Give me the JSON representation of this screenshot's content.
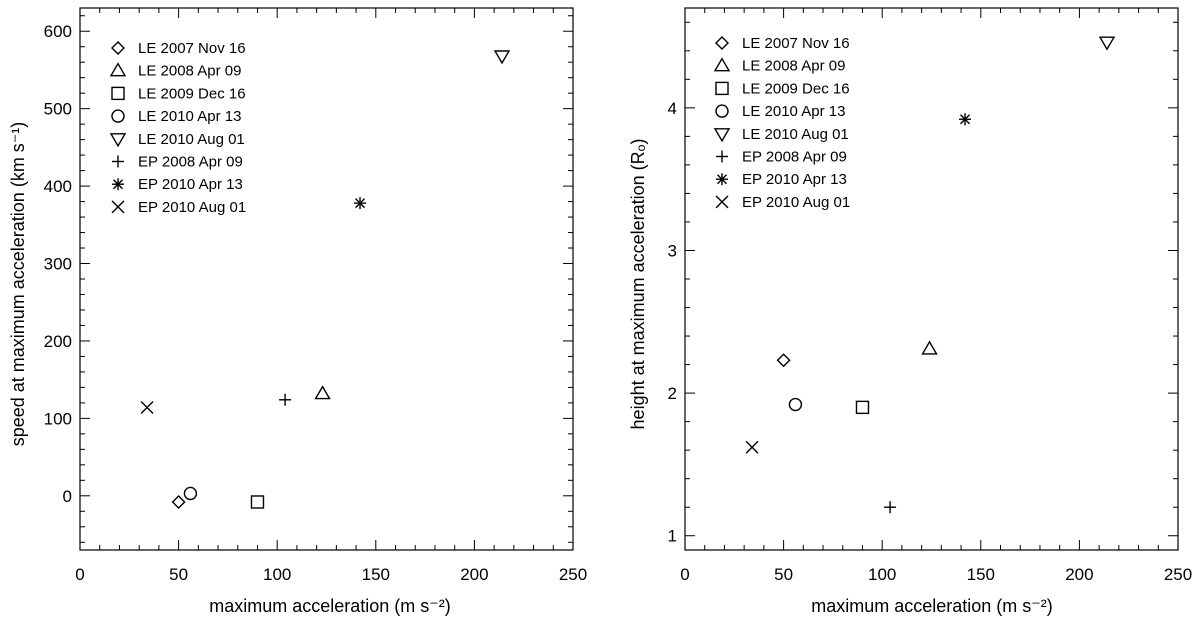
{
  "legend_entries": [
    {
      "label": "LE 2007 Nov 16",
      "marker": "diamond"
    },
    {
      "label": "LE 2008 Apr 09",
      "marker": "triangle-up"
    },
    {
      "label": "LE 2009 Dec 16",
      "marker": "square"
    },
    {
      "label": "LE 2010 Apr 13",
      "marker": "circle"
    },
    {
      "label": "LE 2010 Aug 01",
      "marker": "triangle-down"
    },
    {
      "label": "EP 2008 Apr 09",
      "marker": "plus"
    },
    {
      "label": "EP 2010 Apr 13",
      "marker": "asterisk"
    },
    {
      "label": "EP 2010 Aug 01",
      "marker": "cross"
    }
  ],
  "chart_data": [
    {
      "type": "scatter",
      "xlabel": "maximum acceleration (m s⁻²)",
      "ylabel": "speed at maximum acceleration (km s⁻¹)",
      "xlim": [
        0,
        250
      ],
      "ylim": [
        -70,
        630
      ],
      "xticks": [
        0,
        50,
        100,
        150,
        200,
        250
      ],
      "yticks": [
        0,
        100,
        200,
        300,
        400,
        500,
        600
      ],
      "xtick_labels": [
        "0",
        "50",
        "100",
        "150",
        "200",
        "250"
      ],
      "ytick_labels": [
        "0",
        "100",
        "200",
        "300",
        "400",
        "500",
        "600"
      ],
      "grid": false,
      "legend_position": "top-left",
      "points": [
        {
          "series": "LE 2007 Nov 16",
          "x": 50,
          "y": -8
        },
        {
          "series": "LE 2008 Apr 09",
          "x": 123,
          "y": 132
        },
        {
          "series": "LE 2009 Dec 16",
          "x": 90,
          "y": -8
        },
        {
          "series": "LE 2010 Apr 13",
          "x": 56,
          "y": 3
        },
        {
          "series": "LE 2010 Aug 01",
          "x": 214,
          "y": 568
        },
        {
          "series": "EP 2008 Apr 09",
          "x": 104,
          "y": 124
        },
        {
          "series": "EP 2010 Apr 13",
          "x": 142,
          "y": 378
        },
        {
          "series": "EP 2010 Aug 01",
          "x": 34,
          "y": 114
        }
      ]
    },
    {
      "type": "scatter",
      "xlabel": "maximum acceleration (m s⁻²)",
      "ylabel": "height at maximum acceleration (Rₒ)",
      "xlim": [
        0,
        250
      ],
      "ylim": [
        0.9,
        4.7
      ],
      "xticks": [
        0,
        50,
        100,
        150,
        200,
        250
      ],
      "yticks": [
        1,
        2,
        3,
        4
      ],
      "xtick_labels": [
        "0",
        "50",
        "100",
        "150",
        "200",
        "250"
      ],
      "ytick_labels": [
        "1",
        "2",
        "3",
        "4"
      ],
      "grid": false,
      "legend_position": "top-left",
      "points": [
        {
          "series": "LE 2007 Nov 16",
          "x": 50,
          "y": 2.23
        },
        {
          "series": "LE 2008 Apr 09",
          "x": 124,
          "y": 2.31
        },
        {
          "series": "LE 2009 Dec 16",
          "x": 90,
          "y": 1.9
        },
        {
          "series": "LE 2010 Apr 13",
          "x": 56,
          "y": 1.92
        },
        {
          "series": "LE 2010 Aug 01",
          "x": 214,
          "y": 4.46
        },
        {
          "series": "EP 2008 Apr 09",
          "x": 104,
          "y": 1.2
        },
        {
          "series": "EP 2010 Apr 13",
          "x": 142,
          "y": 3.92
        },
        {
          "series": "EP 2010 Aug 01",
          "x": 34,
          "y": 1.62
        }
      ]
    }
  ]
}
